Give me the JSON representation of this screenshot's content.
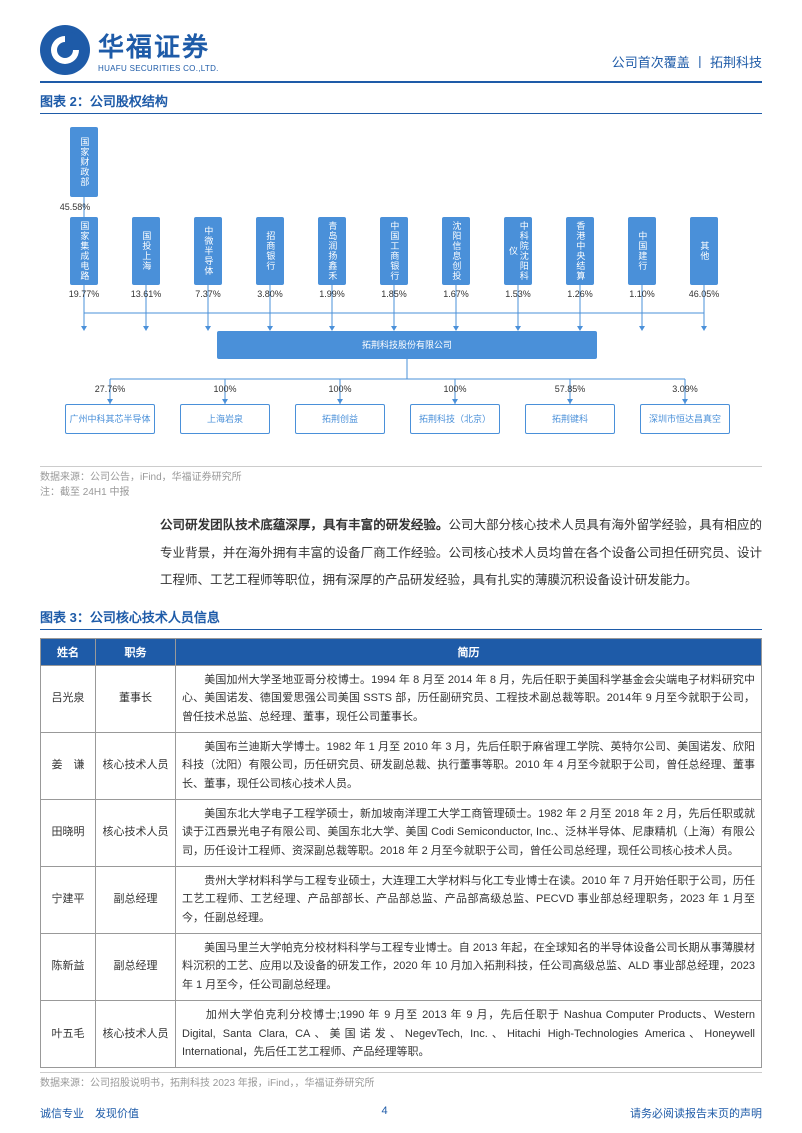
{
  "header": {
    "company_cn": "华福证券",
    "company_en": "HUAFU SECURITIES CO.,LTD.",
    "right_text": "公司首次覆盖 丨 拓荆科技"
  },
  "figure2": {
    "title": "图表 2：公司股权结构",
    "top_node": "国家财政部",
    "top_pct": "45.58%",
    "shareholders": [
      {
        "name": "国家集成电路",
        "pct": "19.77%"
      },
      {
        "name": "国投上海",
        "pct": "13.61%"
      },
      {
        "name": "中微半导体",
        "pct": "7.37%"
      },
      {
        "name": "招商银行",
        "pct": "3.80%"
      },
      {
        "name": "青岛润扬鑫禾",
        "pct": "1.99%"
      },
      {
        "name": "中国工商银行",
        "pct": "1.85%"
      },
      {
        "name": "沈阳信息创投",
        "pct": "1.67%"
      },
      {
        "name": "中科院沈阳科仪",
        "pct": "1.53%",
        "highlight": true
      },
      {
        "name": "香港中央结算",
        "pct": "1.26%"
      },
      {
        "name": "中国建行",
        "pct": "1.10%"
      },
      {
        "name": "其他",
        "pct": "46.05%"
      }
    ],
    "company": "拓荆科技股份有限公司",
    "subsidiaries": [
      {
        "name": "广州中科其芯半导体",
        "pct": "27.76%"
      },
      {
        "name": "上海岩泉",
        "pct": "100%"
      },
      {
        "name": "拓荆创益",
        "pct": "100%"
      },
      {
        "name": "拓荆科技（北京）",
        "pct": "100%"
      },
      {
        "name": "拓荆键科",
        "pct": "57.85%"
      },
      {
        "name": "深圳市恒达昌真空",
        "pct": "3.09%"
      }
    ],
    "source": "数据来源：公司公告，iFind，华福证券研究所",
    "source2": "注：截至 24H1 中报"
  },
  "paragraph": {
    "lead": "公司研发团队技术底蕴深厚，具有丰富的研发经验。",
    "rest": "公司大部分核心技术人员具有海外留学经验，具有相应的专业背景，并在海外拥有丰富的设备厂商工作经验。公司核心技术人员均曾在各个设备公司担任研究员、设计工程师、工艺工程师等职位，拥有深厚的产品研发经验，具有扎实的薄膜沉积设备设计研发能力。"
  },
  "figure3": {
    "title": "图表 3：公司核心技术人员信息",
    "columns": [
      "姓名",
      "职务",
      "简历"
    ],
    "rows": [
      {
        "name": "吕光泉",
        "role": "董事长",
        "bio": "美国加州大学圣地亚哥分校博士。1994 年 8 月至 2014 年 8 月，先后任职于美国科学基金会尖端电子材料研究中心、美国诺发、德国爱思强公司美国 SSTS 部，历任副研究员、工程技术副总裁等职。2014年 9 月至今就职于公司，曾任技术总监、总经理、董事，现任公司董事长。"
      },
      {
        "name": "姜　谦",
        "role": "核心技术人员",
        "bio": "美国布兰迪斯大学博士。1982 年 1 月至 2010 年 3 月，先后任职于麻省理工学院、英特尔公司、美国诺发、欣阳科技（沈阳）有限公司，历任研究员、研发副总裁、执行董事等职。2010 年 4 月至今就职于公司，曾任总经理、董事长、董事，现任公司核心技术人员。"
      },
      {
        "name": "田晓明",
        "role": "核心技术人员",
        "bio": "美国东北大学电子工程学硕士，新加坡南洋理工大学工商管理硕士。1982 年 2 月至 2018 年 2 月，先后任职或就读于江西景光电子有限公司、美国东北大学、美国 Codi Semiconductor, Inc.、泛林半导体、尼康精机（上海）有限公司，历任设计工程师、资深副总裁等职。2018 年 2 月至今就职于公司，曾任公司总经理，现任公司核心技术人员。"
      },
      {
        "name": "宁建平",
        "role": "副总经理",
        "bio": "贵州大学材料科学与工程专业硕士，大连理工大学材料与化工专业博士在读。2010 年 7 月开始任职于公司，历任工艺工程师、工艺经理、产品部部长、产品部总监、产品部高级总监、PECVD 事业部总经理职务，2023 年 1 月至今，任副总经理。"
      },
      {
        "name": "陈新益",
        "role": "副总经理",
        "bio": "美国马里兰大学帕克分校材料科学与工程专业博士。自 2013 年起，在全球知名的半导体设备公司长期从事薄膜材料沉积的工艺、应用以及设备的研发工作，2020 年 10 月加入拓荆科技，任公司高级总监、ALD 事业部总经理，2023 年 1 月至今，任公司副总经理。"
      },
      {
        "name": "叶五毛",
        "role": "核心技术人员",
        "bio": "加州大学伯克利分校博士;1990 年 9 月至 2013 年 9 月，先后任职于 Nashua Computer Products、Western Digital, Santa Clara, CA、美国诺发、NegevTech, Inc.、Hitachi High-Technologies America、Honeywell International，先后任工艺工程师、产品经理等职。"
      }
    ],
    "source": "数据来源：公司招股说明书，拓荆科技 2023 年报，iFind，，华福证券研究所"
  },
  "footer": {
    "left": "诚信专业　发现价值",
    "page": "4",
    "right": "请务必阅读报告末页的声明"
  }
}
